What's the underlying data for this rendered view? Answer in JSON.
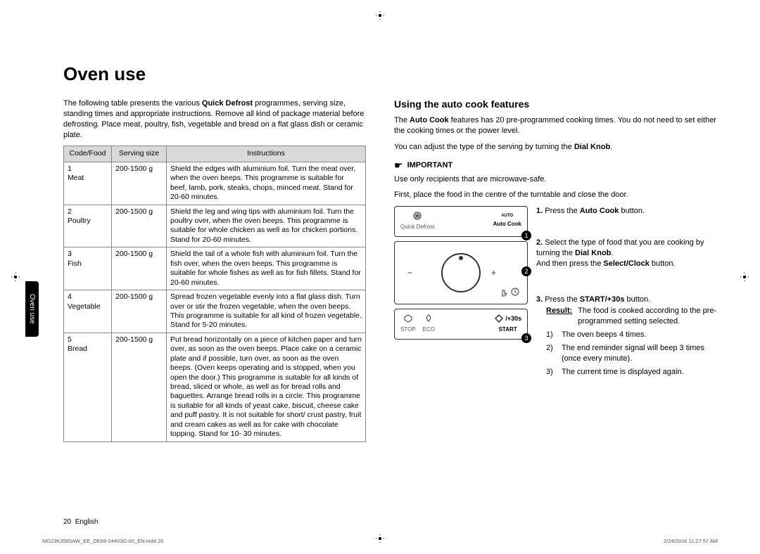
{
  "page": {
    "title": "Oven use",
    "side_tab": "Oven use",
    "footer_page": "20",
    "footer_lang": "English",
    "indd_file": "MG23K3585AW_EE_DE68-04403G-00_EN.indd   20",
    "indd_time": "2/24/2016   11:27:57 AM"
  },
  "left": {
    "intro_pre": "The following table presents the various ",
    "intro_bold": "Quick Defrost",
    "intro_post": " programmes, serving size, standing times and appropriate instructions. Remove all kind of package material before defrosting. Place meat, poultry, fish, vegetable and bread on a flat glass dish or ceramic plate.",
    "table": {
      "headers": [
        "Code/Food",
        "Serving size",
        "Instructions"
      ],
      "widths": [
        "68px",
        "78px",
        "auto"
      ],
      "rows": [
        {
          "code": "1",
          "food": "Meat",
          "size": "200-1500 g",
          "instr": "Shield the edges with aluminium foil. Turn the meat over, when the oven beeps. This programme is suitable for beef, lamb, pork, steaks, chops, minced meat. Stand for 20-60 minutes."
        },
        {
          "code": "2",
          "food": "Poultry",
          "size": "200-1500 g",
          "instr": "Shield the leg and wing tips with aluminium foil. Turn the poultry over, when the oven beeps. This programme is suitable for whole chicken as well as for chicken portions.\nStand for 20-60 minutes."
        },
        {
          "code": "3",
          "food": "Fish",
          "size": "200-1500 g",
          "instr": "Shield the tail of a whole fish with aluminium foil. Turn the fish over, when the oven beeps. This programme is suitable for whole fishes as well as for fish fillets. Stand for 20-60 minutes."
        },
        {
          "code": "4",
          "food": "Vegetable",
          "size": "200-1500 g",
          "instr": "Spread frozen vegetable evenly into a flat glass dish. Turn over or stir the frozen vegetable, when the oven beeps.\nThis programme is suitable for all kind of frozen vegetable. Stand for 5-20 minutes."
        },
        {
          "code": "5",
          "food": "Bread",
          "size": "200-1500 g",
          "instr": "Put bread horizontally on a piece of kitchen paper and turn over, as soon as the oven beeps. Place cake on a ceramic plate and if possible, turn over, as soon as the oven beeps. (Oven keeps operating and is stopped, when you open the door.) This programme is suitable for all kinds of bread, sliced or whole, as well as for bread rolls and baguettes. Arrange bread rolls in a circle. This programme is suitable for all kinds of yeast cake, biscuit, cheese cake and puff pastry. It is not suitable for short/ crust pastry, fruit and cream cakes as well as for cake with chocolate topping. Stand for 10- 30 minutes."
        }
      ]
    }
  },
  "right": {
    "heading": "Using the auto cook features",
    "p1_pre": "The ",
    "p1_bold": "Auto Cook",
    "p1_post": " features has 20 pre-programmed cooking times. You do not need to set either the cooking times or the power level.",
    "p2_pre": "You can adjust the type of the serving by turning the ",
    "p2_bold": "Dial Knob",
    "p2_post": ".",
    "important_label": "IMPORTANT",
    "important_text": "Use only recipients that are microwave-safe.",
    "first_line": "First, place the food in the centre of the turntable and close the door.",
    "panel1": {
      "left_label": "Quick Defrost",
      "right_label": "Auto Cook",
      "right_sub": "AUTO"
    },
    "panel3": {
      "stop": "STOP",
      "eco": "ECO",
      "start": "START",
      "plus30": "/+30s"
    },
    "step1_num": "1.",
    "step1_pre": "Press the ",
    "step1_bold": "Auto Cook",
    "step1_post": " button.",
    "step2_num": "2.",
    "step2_a": "Select the type of food that you are cooking by turning the ",
    "step2_bold": "Dial Knob",
    "step2_b": ".",
    "step2_c": "And then press the ",
    "step2_bold2": "Select/Clock",
    "step2_d": " button.",
    "step3_num": "3.",
    "step3_pre": "Press the ",
    "step3_bold": "START/+30s",
    "step3_post": " button.",
    "result_label": "Result:",
    "result_text": "The food is cooked according to the pre-programmed setting selected.",
    "r1_n": "1)",
    "r1": "The oven beeps 4 times.",
    "r2_n": "2)",
    "r2": "The end reminder signal will beep 3 times (once every minute).",
    "r3_n": "3)",
    "r3": "The current time is displayed again."
  }
}
